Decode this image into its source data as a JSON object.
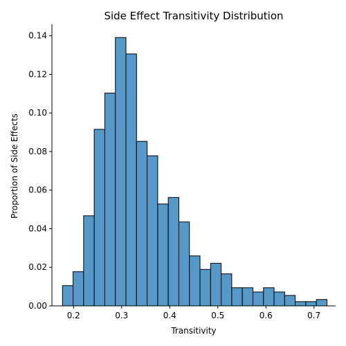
{
  "chart_data": {
    "type": "bar",
    "title": "Side Effect Transitivity Distribution",
    "xlabel": "Transitivity",
    "ylabel": "Proportion of Side Effects",
    "bar_color": "#5499c7",
    "edge_color": "#000000",
    "xlim": [
      0.155,
      0.745
    ],
    "ylim": [
      0,
      0.146
    ],
    "grid": false,
    "legend": "none",
    "x_ticks": [
      {
        "value": 0.2,
        "label": "0.2"
      },
      {
        "value": 0.3,
        "label": "0.3"
      },
      {
        "value": 0.4,
        "label": "0.4"
      },
      {
        "value": 0.5,
        "label": "0.5"
      },
      {
        "value": 0.6,
        "label": "0.6"
      },
      {
        "value": 0.7,
        "label": "0.7"
      }
    ],
    "y_ticks": [
      {
        "value": 0.0,
        "label": "0.00"
      },
      {
        "value": 0.02,
        "label": "0.02"
      },
      {
        "value": 0.04,
        "label": "0.04"
      },
      {
        "value": 0.06,
        "label": "0.06"
      },
      {
        "value": 0.08,
        "label": "0.08"
      },
      {
        "value": 0.1,
        "label": "0.10"
      },
      {
        "value": 0.12,
        "label": "0.12"
      },
      {
        "value": 0.14,
        "label": "0.14"
      }
    ],
    "bins": [
      {
        "x0": 0.177,
        "x1": 0.199,
        "value": 0.0105
      },
      {
        "x0": 0.199,
        "x1": 0.221,
        "value": 0.0177
      },
      {
        "x0": 0.221,
        "x1": 0.243,
        "value": 0.0467
      },
      {
        "x0": 0.243,
        "x1": 0.265,
        "value": 0.0915
      },
      {
        "x0": 0.265,
        "x1": 0.287,
        "value": 0.1103
      },
      {
        "x0": 0.287,
        "x1": 0.309,
        "value": 0.1391
      },
      {
        "x0": 0.309,
        "x1": 0.331,
        "value": 0.1306
      },
      {
        "x0": 0.331,
        "x1": 0.353,
        "value": 0.0853
      },
      {
        "x0": 0.353,
        "x1": 0.375,
        "value": 0.0778
      },
      {
        "x0": 0.375,
        "x1": 0.397,
        "value": 0.0528
      },
      {
        "x0": 0.397,
        "x1": 0.419,
        "value": 0.0562
      },
      {
        "x0": 0.419,
        "x1": 0.441,
        "value": 0.0435
      },
      {
        "x0": 0.441,
        "x1": 0.463,
        "value": 0.0259
      },
      {
        "x0": 0.463,
        "x1": 0.485,
        "value": 0.0189
      },
      {
        "x0": 0.485,
        "x1": 0.507,
        "value": 0.0221
      },
      {
        "x0": 0.507,
        "x1": 0.529,
        "value": 0.0166
      },
      {
        "x0": 0.529,
        "x1": 0.551,
        "value": 0.0094
      },
      {
        "x0": 0.551,
        "x1": 0.573,
        "value": 0.0094
      },
      {
        "x0": 0.573,
        "x1": 0.595,
        "value": 0.0072
      },
      {
        "x0": 0.595,
        "x1": 0.617,
        "value": 0.0094
      },
      {
        "x0": 0.617,
        "x1": 0.639,
        "value": 0.0072
      },
      {
        "x0": 0.639,
        "x1": 0.661,
        "value": 0.0054
      },
      {
        "x0": 0.661,
        "x1": 0.683,
        "value": 0.0022
      },
      {
        "x0": 0.683,
        "x1": 0.705,
        "value": 0.0022
      },
      {
        "x0": 0.705,
        "x1": 0.727,
        "value": 0.0033
      }
    ]
  }
}
